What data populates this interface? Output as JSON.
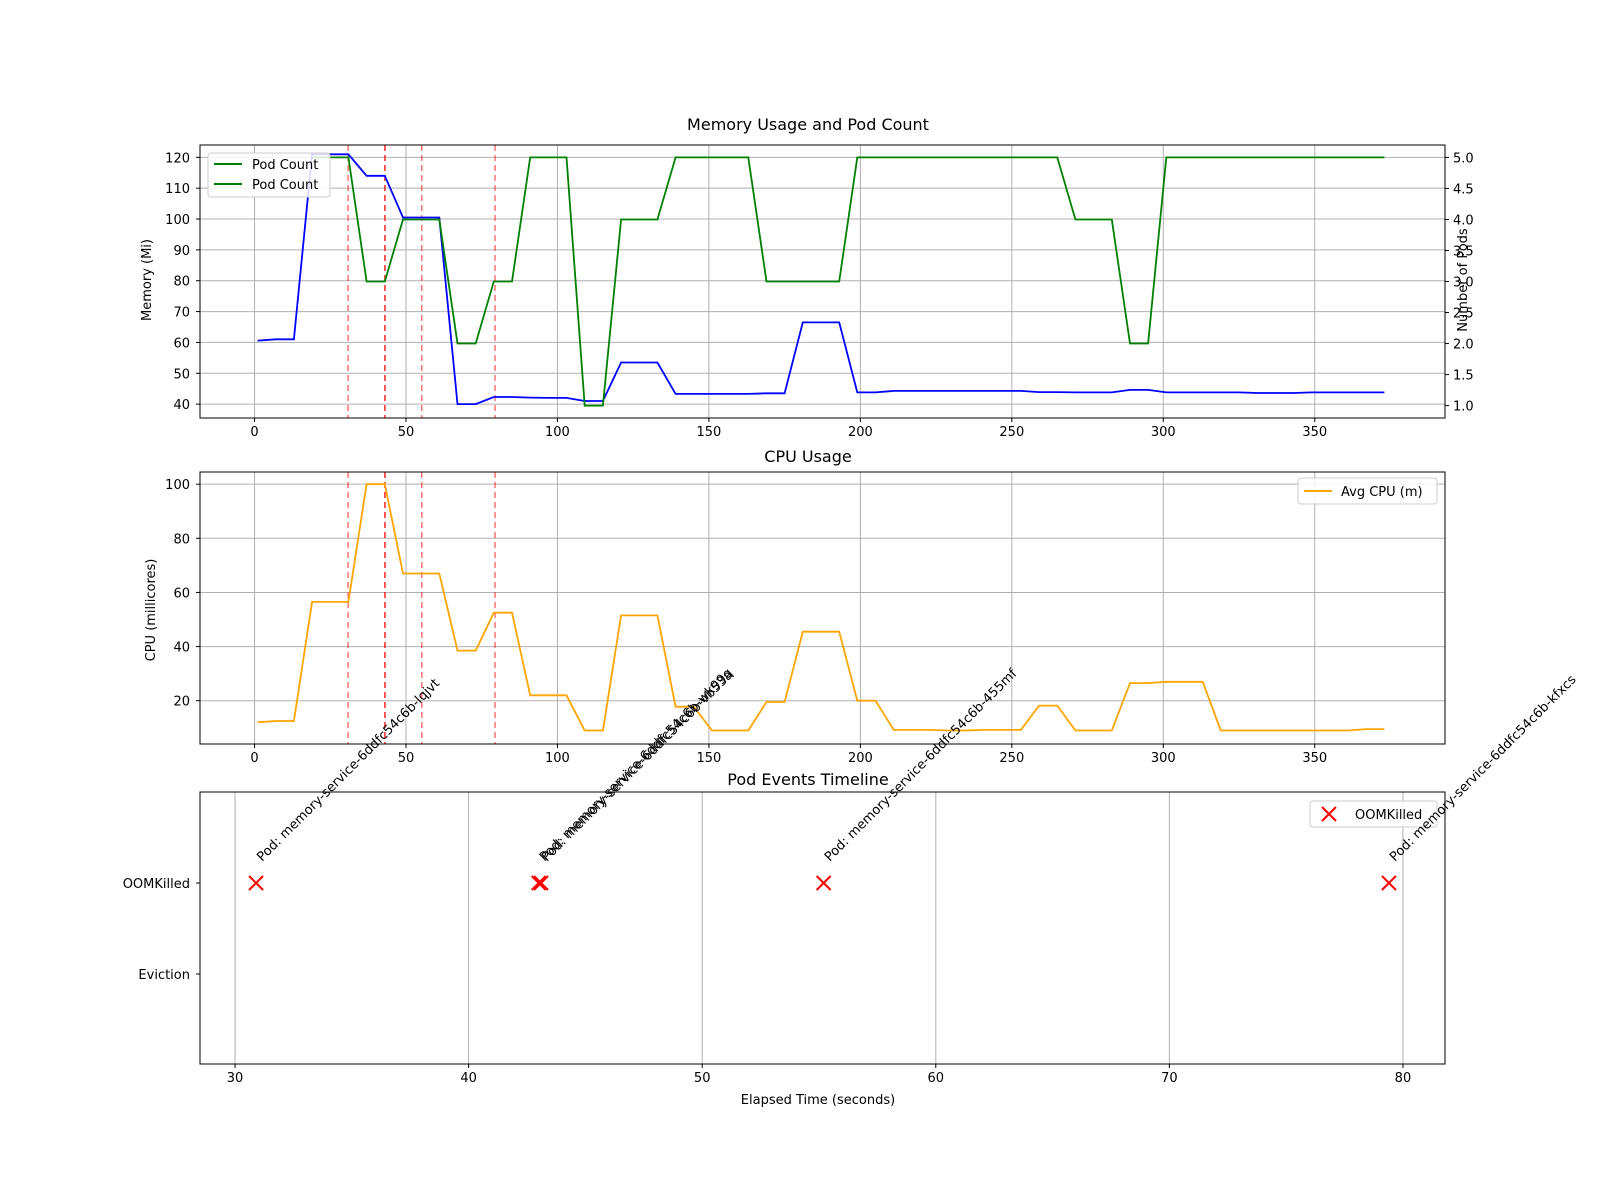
{
  "colors": {
    "memory": "#0000ff",
    "pods": "#008000",
    "cpu": "#ffa500",
    "oom_marker": "#ff0000",
    "event_line": "#ff0000",
    "grid": "#b0b0b0"
  },
  "event_times": [
    30.9,
    43.0,
    43.1,
    55.2,
    79.4
  ],
  "chart_data": [
    {
      "type": "line",
      "title": "Memory Usage and Pod Count",
      "xlabel": "",
      "ylabel": "Memory (Mi)",
      "ylabel_right": "Number of Pods",
      "xlim": [
        -18,
        393
      ],
      "ylim": [
        35.5,
        124
      ],
      "ylim_right": [
        0.8,
        5.2
      ],
      "x_ticks": [
        0,
        50,
        100,
        150,
        200,
        250,
        300,
        350
      ],
      "y_ticks": [
        40,
        50,
        60,
        70,
        80,
        90,
        100,
        110,
        120
      ],
      "y_ticks_right": [
        1.0,
        1.5,
        2.0,
        2.5,
        3.0,
        3.5,
        4.0,
        4.5,
        5.0
      ],
      "grid": true,
      "legend": {
        "placement": "top-left",
        "entries": [
          "Pod Count",
          "Pod Count"
        ]
      },
      "series": [
        {
          "name": "",
          "axis": "left",
          "color": "memory",
          "x": [
            1,
            7,
            13,
            19,
            25,
            31,
            37,
            43,
            49,
            55,
            61,
            67,
            73,
            79,
            85,
            91,
            97,
            103,
            109,
            115,
            121,
            127,
            133,
            139,
            145,
            151,
            157,
            163,
            169,
            175,
            181,
            187,
            193,
            199,
            205,
            211,
            217,
            223,
            229,
            235,
            241,
            247,
            253,
            259,
            265,
            271,
            277,
            283,
            289,
            295,
            301,
            307,
            313,
            319,
            325,
            331,
            337,
            343,
            349,
            355,
            361,
            367,
            373
          ],
          "values": [
            60.6,
            61,
            61,
            121,
            121,
            121,
            114,
            114,
            100.5,
            100.5,
            100.5,
            40,
            40,
            42.3,
            42.3,
            42.1,
            42,
            42,
            41,
            41,
            53.5,
            53.5,
            53.5,
            43.3,
            43.3,
            43.3,
            43.3,
            43.3,
            43.5,
            43.5,
            66.5,
            66.5,
            66.5,
            43.8,
            43.8,
            44.3,
            44.3,
            44.3,
            44.3,
            44.3,
            44.3,
            44.3,
            44.3,
            43.9,
            43.9,
            43.8,
            43.8,
            43.8,
            44.6,
            44.6,
            43.8,
            43.8,
            43.8,
            43.8,
            43.8,
            43.6,
            43.6,
            43.6,
            43.8,
            43.8,
            43.8,
            43.8,
            43.8
          ]
        },
        {
          "name": "Pod Count",
          "axis": "right",
          "color": "pods",
          "x": [
            19,
            31,
            37,
            43,
            49,
            55,
            61,
            67,
            73,
            79,
            85,
            91,
            97,
            103,
            109,
            115,
            121,
            127,
            133,
            139,
            145,
            151,
            157,
            163,
            169,
            175,
            181,
            187,
            193,
            199,
            205,
            211,
            217,
            223,
            229,
            235,
            241,
            247,
            253,
            259,
            265,
            271,
            277,
            283,
            289,
            295,
            301,
            307,
            313,
            319,
            325,
            331,
            337,
            343,
            349,
            355,
            361,
            367,
            373
          ],
          "values": [
            5,
            5,
            3,
            3,
            4,
            4,
            4,
            2,
            2,
            3,
            3,
            5,
            5,
            5,
            1,
            1,
            4,
            4,
            4,
            5,
            5,
            5,
            5,
            5,
            3,
            3,
            3,
            3,
            3,
            5,
            5,
            5,
            5,
            5,
            5,
            5,
            5,
            5,
            5,
            5,
            5,
            4,
            4,
            4,
            2,
            2,
            5,
            5,
            5,
            5,
            5,
            5,
            5,
            5,
            5,
            5,
            5,
            5,
            5
          ]
        }
      ]
    },
    {
      "type": "line",
      "title": "CPU Usage",
      "xlabel": "",
      "ylabel": "CPU (millicores)",
      "xlim": [
        -18,
        393
      ],
      "ylim": [
        4,
        104.5
      ],
      "x_ticks": [
        0,
        50,
        100,
        150,
        200,
        250,
        300,
        350
      ],
      "y_ticks": [
        20,
        40,
        60,
        80,
        100
      ],
      "grid": true,
      "legend": {
        "placement": "top-right",
        "entries": [
          "Avg CPU (m)"
        ]
      },
      "series": [
        {
          "name": "Avg CPU (m)",
          "color": "cpu",
          "x": [
            1,
            7,
            13,
            19,
            25,
            31,
            37,
            43,
            49,
            55,
            61,
            67,
            73,
            79,
            85,
            91,
            97,
            103,
            109,
            115,
            121,
            127,
            133,
            139,
            145,
            151,
            157,
            163,
            169,
            175,
            181,
            187,
            193,
            199,
            205,
            211,
            217,
            223,
            229,
            235,
            241,
            247,
            253,
            259,
            265,
            271,
            277,
            283,
            289,
            295,
            301,
            307,
            313,
            319,
            325,
            331,
            337,
            343,
            349,
            355,
            361,
            367,
            373
          ],
          "values": [
            12,
            12.5,
            12.5,
            56.5,
            56.5,
            56.5,
            100,
            100,
            67,
            67,
            67,
            38.5,
            38.5,
            52.5,
            52.5,
            22,
            22,
            22,
            9,
            9,
            51.5,
            51.5,
            51.5,
            17.8,
            17.8,
            9,
            9,
            9,
            19.5,
            19.5,
            45.5,
            45.5,
            45.5,
            20,
            20,
            9.2,
            9.2,
            9.2,
            9,
            9,
            9.2,
            9.2,
            9.2,
            18.2,
            18.2,
            9,
            9,
            9,
            26.5,
            26.5,
            27,
            27,
            27,
            9,
            9,
            9,
            9,
            9,
            9,
            9,
            9,
            9.5,
            9.5
          ]
        }
      ]
    },
    {
      "type": "scatter",
      "title": "Pod Events Timeline",
      "xlabel": "Elapsed Time (seconds)",
      "ylabel": "",
      "xlim": [
        28.5,
        81.8
      ],
      "x_ticks": [
        30,
        40,
        50,
        60,
        70,
        80
      ],
      "y_categories": [
        "OOMKilled",
        "Eviction"
      ],
      "grid": "x",
      "legend": {
        "placement": "top-right",
        "entries": [
          "OOMKilled"
        ]
      },
      "series": [
        {
          "name": "OOMKilled",
          "color": "oom_marker",
          "points": [
            {
              "x": 30.9,
              "y": "OOMKilled",
              "label": "Pod: memory-service-6ddfc54c6b-lqjvt"
            },
            {
              "x": 43.0,
              "y": "OOMKilled",
              "label": "Pod: memory-service-6ddfc54c6b-wk99q"
            },
            {
              "x": 43.1,
              "y": "OOMKilled",
              "label": "Pod: memory-service-6ddfc54c6b-vb53a"
            },
            {
              "x": 55.2,
              "y": "OOMKilled",
              "label": "Pod: memory-service-6ddfc54c6b-455mf"
            },
            {
              "x": 79.4,
              "y": "OOMKilled",
              "label": "Pod: memory-service-6ddfc54c6b-kfxcs"
            }
          ]
        }
      ]
    }
  ]
}
